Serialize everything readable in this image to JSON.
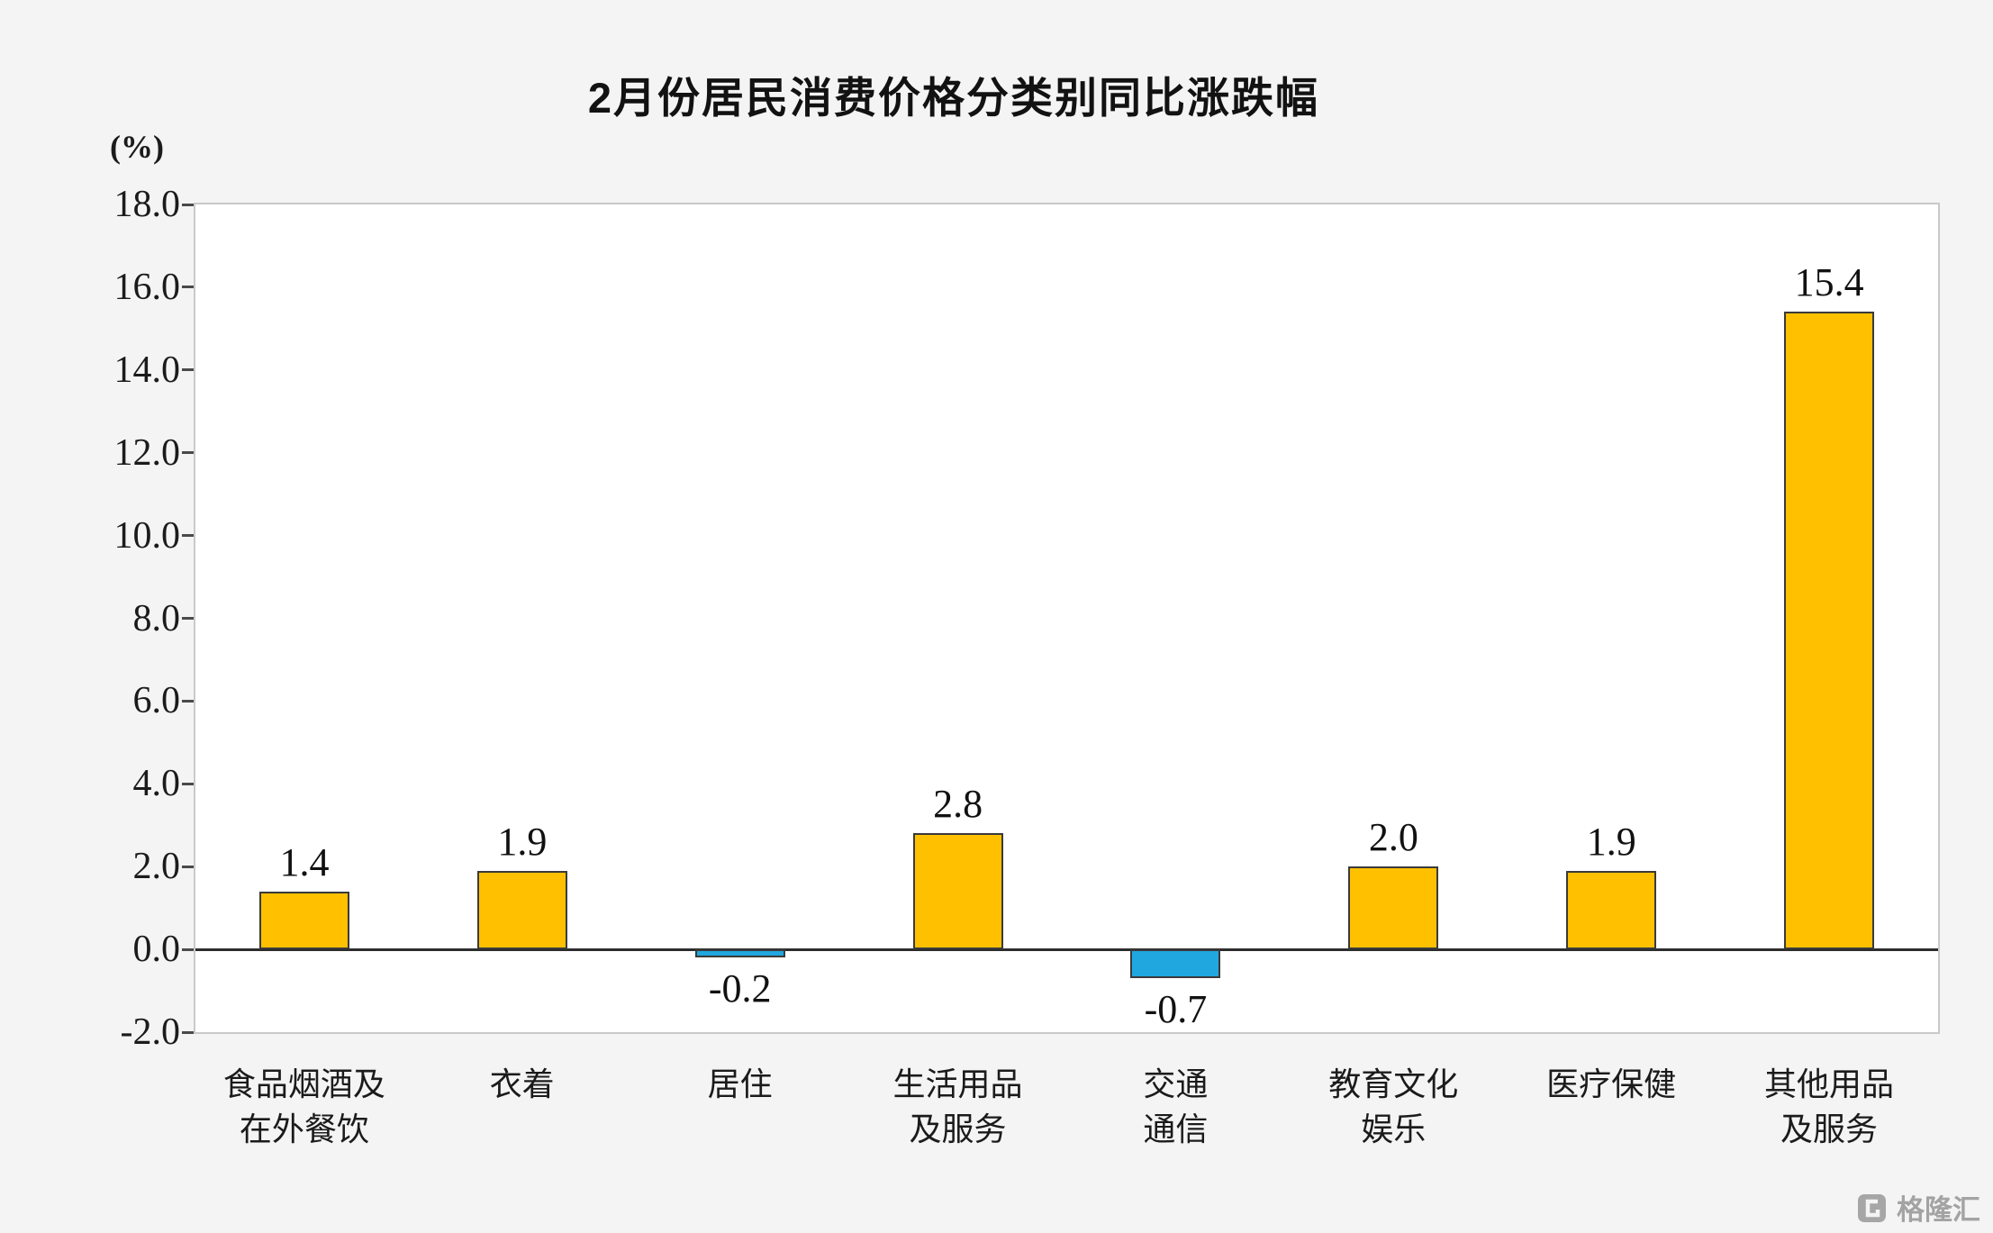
{
  "page": {
    "watermark": "格隆汇"
  },
  "chart_data": {
    "type": "bar",
    "title": "2月份居民消费价格分类别同比涨跌幅",
    "unit_label": "(%)",
    "categories": [
      "食品烟酒及\n在外餐饮",
      "衣着",
      "居住",
      "生活用品\n及服务",
      "交通\n通信",
      "教育文化\n娱乐",
      "医疗保健",
      "其他用品\n及服务"
    ],
    "values": [
      1.4,
      1.9,
      -0.2,
      2.8,
      -0.7,
      2.0,
      1.9,
      15.4
    ],
    "labels": [
      "1.4",
      "1.9",
      "-0.2",
      "2.8",
      "-0.7",
      "2.0",
      "1.9",
      "15.4"
    ],
    "ylim": [
      -2.0,
      18.0
    ],
    "ytick_step": 2.0,
    "yticks": [
      "18.0",
      "16.0",
      "14.0",
      "12.0",
      "10.0",
      "8.0",
      "6.0",
      "4.0",
      "2.0",
      "0.0",
      "-2.0"
    ],
    "grid": false,
    "legend_position": "none",
    "colors": {
      "positive": "#FFC000",
      "negative": "#21A7E0",
      "bar_border": "#3a3a3a",
      "plot_background": "#ffffff",
      "page_background": "#f4f4f4"
    }
  }
}
